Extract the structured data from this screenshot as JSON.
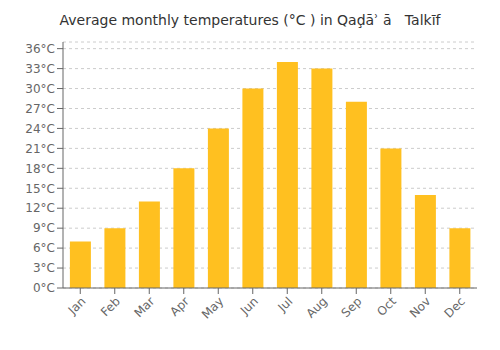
{
  "chart_data": {
    "type": "bar",
    "title": "Average monthly temperatures (°C ) in Qaḑāʾ ā   Talkīf",
    "categories": [
      "Jan",
      "Feb",
      "Mar",
      "Apr",
      "May",
      "Jun",
      "Jul",
      "Aug",
      "Sep",
      "Oct",
      "Nov",
      "Dec"
    ],
    "values": [
      7,
      9,
      13,
      18,
      24,
      30,
      34,
      33,
      28,
      21,
      14,
      9
    ],
    "color": "#FFC020",
    "ylim": [
      0,
      37
    ],
    "yticks": [
      {
        "value": 0,
        "label": "0°C"
      },
      {
        "value": 3,
        "label": "3°C"
      },
      {
        "value": 6,
        "label": "6°C"
      },
      {
        "value": 9,
        "label": "9°C"
      },
      {
        "value": 12,
        "label": "12°C"
      },
      {
        "value": 15,
        "label": "15°C"
      },
      {
        "value": 18,
        "label": "18°C"
      },
      {
        "value": 21,
        "label": "21°C"
      },
      {
        "value": 24,
        "label": "24°C"
      },
      {
        "value": 27,
        "label": "27°C"
      },
      {
        "value": 30,
        "label": "30°C"
      },
      {
        "value": 33,
        "label": "33°C"
      },
      {
        "value": 36,
        "label": "36°C"
      }
    ],
    "grid": true
  }
}
